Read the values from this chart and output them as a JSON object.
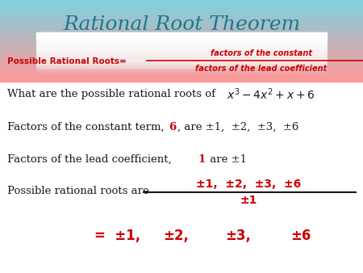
{
  "title": "Rational Root Theorem",
  "title_color": "#1a7a8a",
  "title_fontsize": 18,
  "red_color": "#cc0000",
  "black_color": "#1a1a1a",
  "line1_label": "Possible Rational Roots=",
  "line1_frac_top": "factors of the constant",
  "line1_frac_bot": "factors of the lead coefficient",
  "line2_text": "What are the possible rational roots of ",
  "line3_pre": "Factors of the constant term, ",
  "line3_num": "6",
  "line3_post": ", are ±1,  ±2,  ±3,  ±6",
  "line4_pre": "Factors of the lead coefficient, ",
  "line4_num": "1",
  "line4_post": " are ±1",
  "line5_pre": "Possible rational roots are",
  "line5_frac_top": "±1,  ±2,  ±3,  ±6",
  "line5_frac_bot": "±1",
  "line6_eq": "=  ±1,",
  "line6_rest": "±2,        ±3,        ±6"
}
